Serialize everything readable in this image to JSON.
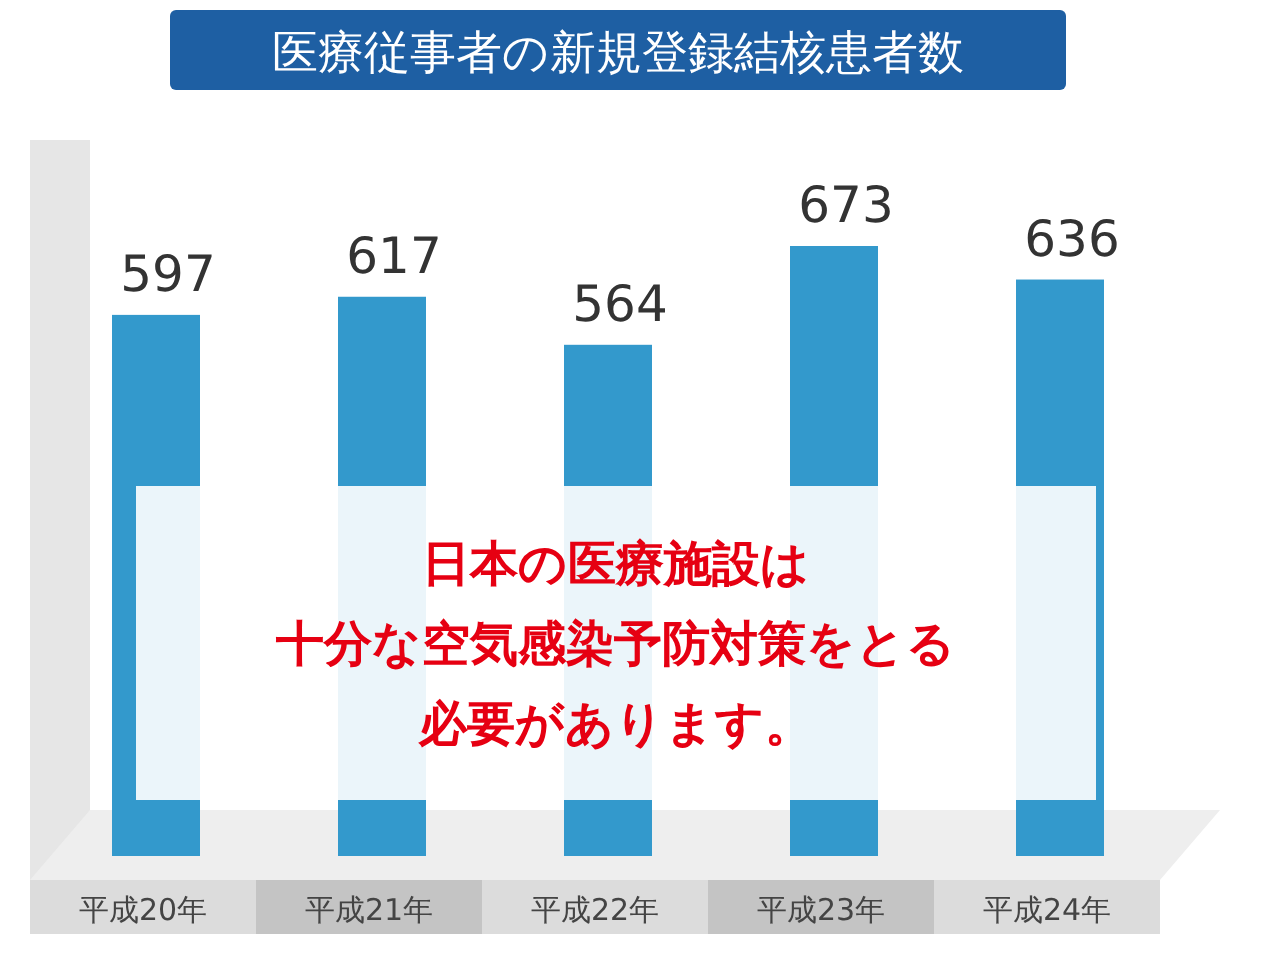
{
  "chart_data": {
    "type": "bar",
    "title": "医療従事者の新規登録結核患者数",
    "categories": [
      "平成20年",
      "平成21年",
      "平成22年",
      "平成23年",
      "平成24年"
    ],
    "values": [
      597,
      617,
      564,
      673,
      636
    ],
    "color": "#3399cc",
    "data_labels": true,
    "annotations": [
      "日本の医療施設は",
      "十分な空気感染予防対策をとる",
      "必要があります。"
    ]
  }
}
